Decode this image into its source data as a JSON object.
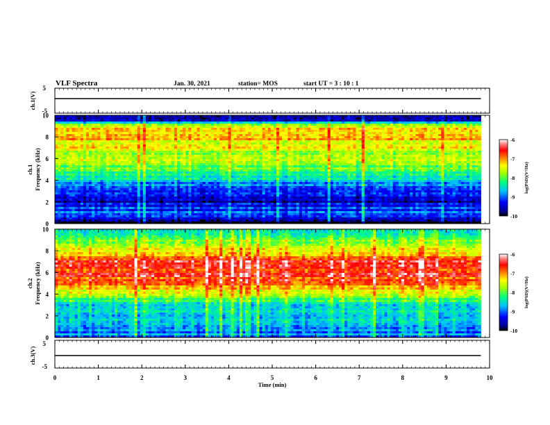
{
  "header": {
    "title": "VLF Spectra",
    "date": "Jan. 30, 2021",
    "station": "station= MOS",
    "start": "start  UT =   3 : 10 : 1"
  },
  "chart_data": [
    {
      "type": "line",
      "panel": "ch1-waveform",
      "ylabel": "ch.1(V)",
      "ylim": [
        -5,
        5
      ],
      "yticks": [
        "5",
        "-5"
      ],
      "xlim": [
        0,
        10
      ],
      "series": [
        {
          "x": [
            0,
            9.8
          ],
          "values": [
            0,
            0
          ]
        }
      ]
    },
    {
      "type": "heatmap",
      "panel": "ch1-spectrogram",
      "ylabel": "ch.1\nFrequency  (kHz)",
      "ylim": [
        0,
        10
      ],
      "yticks": [
        "0",
        "2",
        "4",
        "6",
        "8",
        "10"
      ],
      "xlim": [
        0,
        10
      ],
      "data_end_min": 9.8,
      "colorbar": {
        "label": "log(PSD)(V²/Hz)",
        "range": [
          -10,
          -6
        ],
        "ticks": [
          "-6",
          "-7",
          "-8",
          "-9",
          "-10"
        ]
      },
      "typical_log_psd_by_frequency_khz": {
        "0": -10,
        "1": -9,
        "2": -9.5,
        "3": -9.2,
        "4": -8.6,
        "5": -7.9,
        "6": -7.6,
        "7": -7.5,
        "8": -7.2,
        "9": -7.4,
        "9.6": -9.8
      }
    },
    {
      "type": "heatmap",
      "panel": "ch2-spectrogram",
      "ylabel": "ch.2\nFrequency  (kHz)",
      "ylim": [
        0,
        10
      ],
      "yticks": [
        "0",
        "2",
        "4",
        "6",
        "8",
        "10"
      ],
      "xlim": [
        0,
        10
      ],
      "data_end_min": 9.8,
      "colorbar": {
        "label": "log(PSD)(V²/Hz)",
        "range": [
          -10,
          -6
        ],
        "ticks": [
          "-6",
          "-7",
          "-8",
          "-9",
          "-10"
        ]
      },
      "typical_log_psd_by_frequency_khz": {
        "0": -9,
        "1": -8.6,
        "2": -8.6,
        "3": -8.4,
        "4": -7.8,
        "5": -6.9,
        "6": -6.6,
        "7": -6.6,
        "8": -7.3,
        "9": -8.1,
        "10": -8.6
      }
    },
    {
      "type": "line",
      "panel": "ch3-waveform",
      "ylabel": "ch.3(V)",
      "ylim": [
        -5,
        5
      ],
      "yticks": [
        "5",
        "-5"
      ],
      "xlim": [
        0,
        10
      ],
      "xlabel": "Time  (min)",
      "xticks": [
        "0",
        "1",
        "2",
        "3",
        "4",
        "5",
        "6",
        "7",
        "8",
        "9",
        "10"
      ],
      "series": [
        {
          "x": [
            0,
            9.8
          ],
          "values": [
            0,
            0
          ]
        }
      ]
    }
  ]
}
